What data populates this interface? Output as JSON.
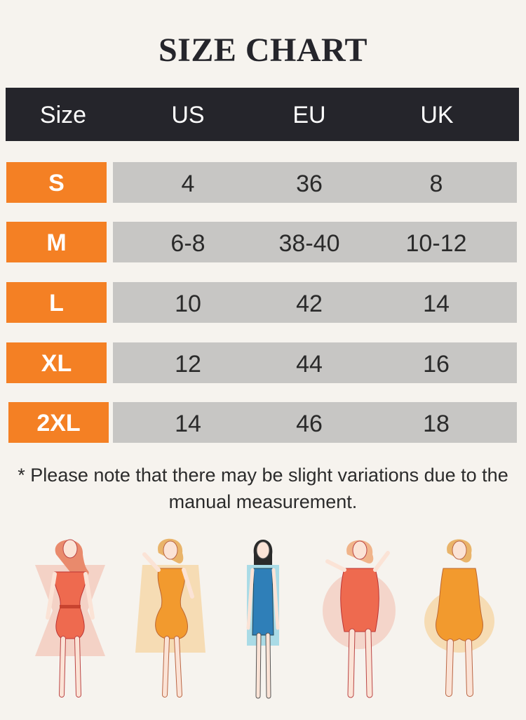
{
  "title": "SIZE CHART",
  "table": {
    "headers": [
      "Size",
      "US",
      "EU",
      "UK"
    ],
    "rows": [
      {
        "size": "S",
        "us": "4",
        "eu": "36",
        "uk": "8"
      },
      {
        "size": "M",
        "us": "6-8",
        "eu": "38-40",
        "uk": "10-12"
      },
      {
        "size": "L",
        "us": "10",
        "eu": "42",
        "uk": "14"
      },
      {
        "size": "XL",
        "us": "12",
        "eu": "44",
        "uk": "16"
      },
      {
        "size": "2XL",
        "us": "14",
        "eu": "46",
        "uk": "18"
      }
    ]
  },
  "note": "* Please note that there may be slight variations due to the manual measurement.",
  "colors": {
    "background": "#f6f3ee",
    "header": "#25252b",
    "size_cell": "#f48024",
    "value_cell": "#c7c6c4"
  },
  "figures": [
    "body-shape-hourglass-icon",
    "body-shape-pear-icon",
    "body-shape-rectangle-icon",
    "body-shape-apple-icon",
    "body-shape-curvy-back-icon"
  ]
}
